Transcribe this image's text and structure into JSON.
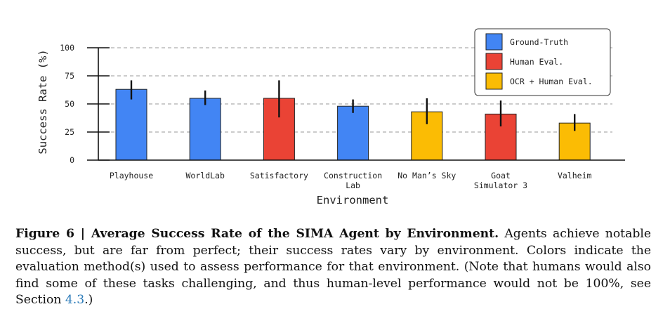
{
  "chart_data": {
    "type": "bar",
    "title": "",
    "xlabel": "Environment",
    "ylabel": "Success Rate (%)",
    "ylim": [
      0,
      100
    ],
    "yticks": [
      "0",
      "25",
      "50",
      "75",
      "100"
    ],
    "grid": "horizontal-dashed",
    "legend_position": "top-right",
    "legend": [
      {
        "name": "Ground-Truth",
        "color": "#4285f4"
      },
      {
        "name": "Human Eval.",
        "color": "#ea4335"
      },
      {
        "name": "OCR + Human Eval.",
        "color": "#fbbc04"
      }
    ],
    "categories": [
      "Playhouse",
      "WorldLab",
      "Satisfactory",
      "Construction Lab",
      "No Man's Sky",
      "Goat Simulator 3",
      "Valheim"
    ],
    "category_label_lines": [
      [
        "Playhouse"
      ],
      [
        "WorldLab"
      ],
      [
        "Satisfactory"
      ],
      [
        "Construction",
        "Lab"
      ],
      [
        "No Man’s Sky"
      ],
      [
        "Goat",
        "Simulator 3"
      ],
      [
        "Valheim"
      ]
    ],
    "values": [
      63,
      55,
      55,
      48,
      43,
      41,
      33
    ],
    "error_low": [
      54,
      49,
      38,
      42,
      32,
      30,
      26
    ],
    "error_high": [
      71,
      62,
      71,
      54,
      55,
      53,
      41
    ],
    "methods": [
      "Ground-Truth",
      "Ground-Truth",
      "Human Eval.",
      "Ground-Truth",
      "OCR + Human Eval.",
      "Human Eval.",
      "OCR + Human Eval."
    ]
  },
  "caption": {
    "label": "Figure 6 |",
    "title": "Average Success Rate of the SIMA Agent by Environment.",
    "text": "Agents achieve notable success, but are far from perfect; their success rates vary by environment. Colors indicate the evaluation method(s) used to assess performance for that environment. (Note that humans would also find some of these tasks challenging, and thus human-level performance would not be 100%, see Section",
    "ref": "4.3",
    "end": ".)"
  }
}
